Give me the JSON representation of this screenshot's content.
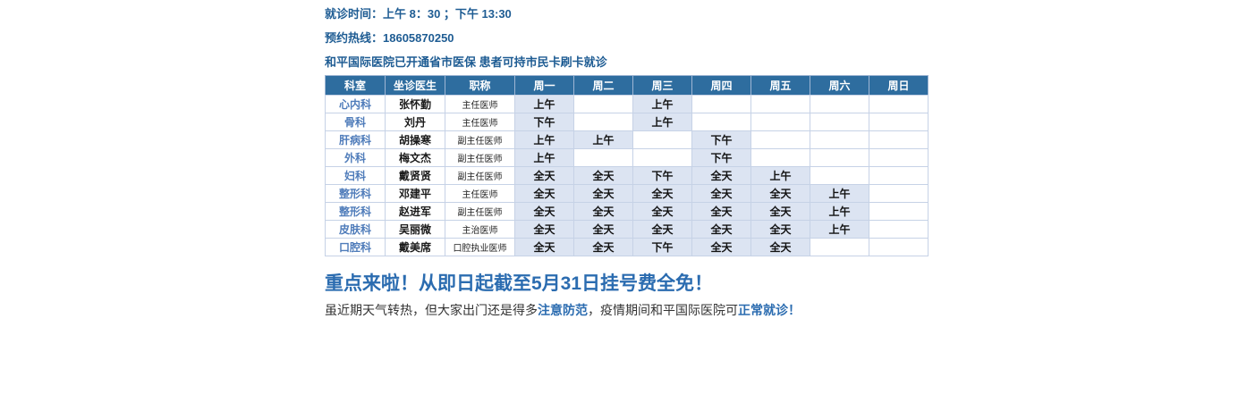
{
  "info": {
    "visit_time": "就诊时间：上午 8：30 ；下午 13:30",
    "hotline": "预约热线：18605870250",
    "insurance": "和平国际医院已开通省市医保 患者可持市民卡刷卡就诊"
  },
  "schedule_table": {
    "headers": [
      "科室",
      "坐诊医生",
      "职称",
      "周一",
      "周二",
      "周三",
      "周四",
      "周五",
      "周六",
      "周日"
    ],
    "rows": [
      {
        "dept": "心内科",
        "doctor": "张怀勤",
        "title": "主任医师",
        "days": [
          "上午",
          "",
          "上午",
          "",
          "",
          "",
          ""
        ]
      },
      {
        "dept": "骨科",
        "doctor": "刘丹",
        "title": "主任医师",
        "days": [
          "下午",
          "",
          "上午",
          "",
          "",
          "",
          ""
        ]
      },
      {
        "dept": "肝病科",
        "doctor": "胡操寒",
        "title": "副主任医师",
        "days": [
          "上午",
          "上午",
          "",
          "下午",
          "",
          "",
          ""
        ]
      },
      {
        "dept": "外科",
        "doctor": "梅文杰",
        "title": "副主任医师",
        "days": [
          "上午",
          "",
          "",
          "下午",
          "",
          "",
          ""
        ]
      },
      {
        "dept": "妇科",
        "doctor": "戴贤贤",
        "title": "副主任医师",
        "days": [
          "全天",
          "全天",
          "下午",
          "全天",
          "上午",
          "",
          ""
        ]
      },
      {
        "dept": "整形科",
        "doctor": "邓建平",
        "title": "主任医师",
        "days": [
          "全天",
          "全天",
          "全天",
          "全天",
          "全天",
          "上午",
          ""
        ]
      },
      {
        "dept": "整形科",
        "doctor": "赵进军",
        "title": "副主任医师",
        "days": [
          "全天",
          "全天",
          "全天",
          "全天",
          "全天",
          "上午",
          ""
        ]
      },
      {
        "dept": "皮肤科",
        "doctor": "吴丽微",
        "title": "主治医师",
        "days": [
          "全天",
          "全天",
          "全天",
          "全天",
          "全天",
          "上午",
          ""
        ]
      },
      {
        "dept": "口腔科",
        "doctor": "戴美席",
        "title": "口腔执业医师",
        "days": [
          "全天",
          "全天",
          "下午",
          "全天",
          "全天",
          "",
          ""
        ]
      }
    ]
  },
  "promo": {
    "heading": "重点来啦！从即日起截至5月31日挂号费全免！",
    "note_part1": "虽近期天气转热，但大家出门还是得多",
    "note_highlight1": "注意防范",
    "note_part2": "，疫情期间和平国际医院可",
    "note_highlight2": "正常就诊！"
  },
  "colors": {
    "header_bg": "#2e6d9f",
    "filled_cell_bg": "#dce4f2",
    "dept_text": "#4f7cba",
    "info_text": "#1e5c93",
    "promo_accent": "#2b6cb0"
  }
}
